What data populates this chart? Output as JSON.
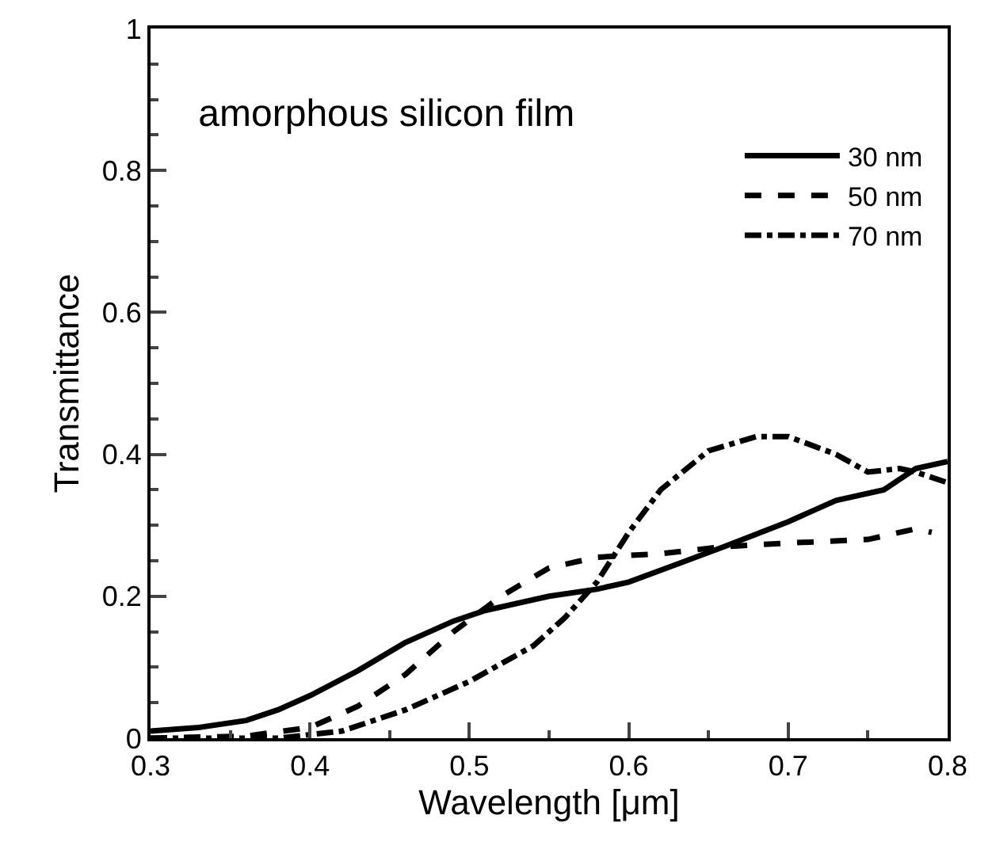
{
  "chart_data": {
    "type": "line",
    "title": "amorphous silicon film",
    "xlabel": "Wavelength [μm]",
    "ylabel": "Transmittance",
    "xlim": [
      0.3,
      0.8
    ],
    "xticks": [
      0.3,
      0.4,
      0.5,
      0.6,
      0.7,
      0.8
    ],
    "ylim": [
      0,
      1
    ],
    "yticks": [
      0,
      0.2,
      0.4,
      0.6,
      0.8,
      1
    ],
    "legend": "top right",
    "marker": "none",
    "series": [
      {
        "name": "30 nm",
        "color": "#000000",
        "line_style": "solid",
        "x": [
          0.3,
          0.33,
          0.36,
          0.38,
          0.4,
          0.43,
          0.46,
          0.49,
          0.51,
          0.55,
          0.58,
          0.6,
          0.63,
          0.66,
          0.7,
          0.73,
          0.76,
          0.78,
          0.8
        ],
        "values": [
          0.01,
          0.015,
          0.025,
          0.04,
          0.06,
          0.095,
          0.135,
          0.165,
          0.18,
          0.2,
          0.21,
          0.22,
          0.245,
          0.27,
          0.305,
          0.335,
          0.35,
          0.38,
          0.39
        ]
      },
      {
        "name": "50 nm",
        "color": "#000000",
        "line_style": "dashed",
        "x": [
          0.3,
          0.36,
          0.4,
          0.43,
          0.46,
          0.49,
          0.52,
          0.55,
          0.58,
          0.62,
          0.66,
          0.7,
          0.75,
          0.78,
          0.79
        ],
        "values": [
          0,
          0.003,
          0.015,
          0.045,
          0.09,
          0.15,
          0.2,
          0.24,
          0.255,
          0.26,
          0.27,
          0.275,
          0.28,
          0.295,
          0.29
        ]
      },
      {
        "name": "70 nm",
        "color": "#000000",
        "line_style": "dashdot",
        "x": [
          0.3,
          0.38,
          0.42,
          0.46,
          0.5,
          0.54,
          0.56,
          0.58,
          0.6,
          0.62,
          0.65,
          0.68,
          0.7,
          0.73,
          0.75,
          0.77,
          0.78,
          0.8
        ],
        "values": [
          0,
          0,
          0.01,
          0.04,
          0.08,
          0.13,
          0.17,
          0.22,
          0.29,
          0.35,
          0.405,
          0.425,
          0.425,
          0.4,
          0.375,
          0.38,
          0.375,
          0.36
        ]
      }
    ]
  }
}
